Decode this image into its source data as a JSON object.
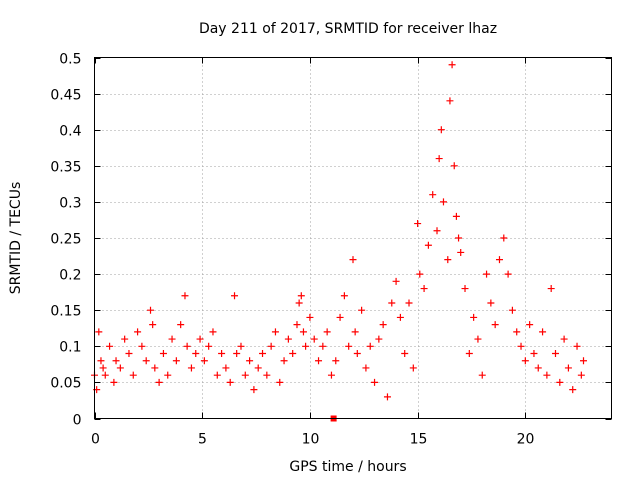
{
  "chart_data": {
    "type": "scatter",
    "title": "Day 211 of 2017, SRMTID for receiver lhaz",
    "xlabel": "GPS time / hours",
    "ylabel": "SRMTID / TECUs",
    "xlim": [
      0,
      24
    ],
    "ylim": [
      0,
      0.5
    ],
    "x_ticks": [
      0,
      5,
      10,
      15,
      20
    ],
    "x_tick_labels": [
      "0",
      "5",
      "10",
      "15",
      "20"
    ],
    "y_ticks": [
      0,
      0.05,
      0.1,
      0.15,
      0.2,
      0.25,
      0.3,
      0.35,
      0.4,
      0.45,
      0.5
    ],
    "y_tick_labels": [
      "0",
      "0.05",
      "0.1",
      "0.15",
      "0.2",
      "0.25",
      "0.3",
      "0.35",
      "0.4",
      "0.45",
      "0.5"
    ],
    "grid": true,
    "marker": "+",
    "color": "#ff0000",
    "series": [
      {
        "name": "SRMTID",
        "x": [
          0.0,
          0.1,
          0.2,
          0.3,
          0.4,
          0.5,
          0.7,
          0.9,
          1.0,
          1.2,
          1.4,
          1.6,
          1.8,
          2.0,
          2.2,
          2.4,
          2.6,
          2.7,
          2.8,
          3.0,
          3.2,
          3.4,
          3.6,
          3.8,
          4.0,
          4.2,
          4.3,
          4.5,
          4.7,
          4.9,
          5.1,
          5.3,
          5.5,
          5.7,
          5.9,
          6.1,
          6.3,
          6.5,
          6.6,
          6.8,
          7.0,
          7.2,
          7.4,
          7.6,
          7.8,
          8.0,
          8.2,
          8.4,
          8.6,
          8.8,
          9.0,
          9.2,
          9.4,
          9.5,
          9.6,
          9.7,
          9.8,
          10.0,
          10.2,
          10.4,
          10.6,
          10.8,
          11.0,
          11.1,
          11.2,
          11.4,
          11.6,
          11.8,
          12.0,
          12.1,
          12.2,
          12.4,
          12.6,
          12.8,
          13.0,
          13.2,
          13.4,
          13.6,
          13.8,
          14.0,
          14.2,
          14.4,
          14.6,
          14.8,
          15.0,
          15.1,
          15.3,
          15.5,
          15.7,
          15.9,
          16.0,
          16.1,
          16.2,
          16.4,
          16.5,
          16.6,
          16.7,
          16.8,
          16.9,
          17.0,
          17.2,
          17.4,
          17.6,
          17.8,
          18.0,
          18.2,
          18.4,
          18.6,
          18.8,
          19.0,
          19.2,
          19.4,
          19.6,
          19.8,
          20.0,
          20.2,
          20.4,
          20.6,
          20.8,
          21.0,
          21.2,
          21.4,
          21.6,
          21.8,
          22.0,
          22.2,
          22.4,
          22.6,
          22.7
        ],
        "y": [
          0.06,
          0.04,
          0.12,
          0.08,
          0.07,
          0.06,
          0.1,
          0.05,
          0.08,
          0.07,
          0.11,
          0.09,
          0.06,
          0.12,
          0.1,
          0.08,
          0.15,
          0.13,
          0.07,
          0.05,
          0.09,
          0.06,
          0.11,
          0.08,
          0.13,
          0.17,
          0.1,
          0.07,
          0.09,
          0.11,
          0.08,
          0.1,
          0.12,
          0.06,
          0.09,
          0.07,
          0.05,
          0.17,
          0.09,
          0.1,
          0.06,
          0.08,
          0.04,
          0.07,
          0.09,
          0.06,
          0.1,
          0.12,
          0.05,
          0.08,
          0.11,
          0.09,
          0.13,
          0.16,
          0.17,
          0.12,
          0.1,
          0.14,
          0.11,
          0.08,
          0.1,
          0.12,
          0.06,
          0.0,
          0.08,
          0.14,
          0.17,
          0.1,
          0.22,
          0.12,
          0.09,
          0.15,
          0.07,
          0.1,
          0.05,
          0.11,
          0.13,
          0.03,
          0.16,
          0.19,
          0.14,
          0.09,
          0.16,
          0.07,
          0.27,
          0.2,
          0.18,
          0.24,
          0.31,
          0.26,
          0.36,
          0.4,
          0.3,
          0.22,
          0.44,
          0.49,
          0.35,
          0.28,
          0.25,
          0.23,
          0.18,
          0.09,
          0.14,
          0.11,
          0.06,
          0.2,
          0.16,
          0.13,
          0.22,
          0.25,
          0.2,
          0.15,
          0.12,
          0.1,
          0.08,
          0.13,
          0.09,
          0.07,
          0.12,
          0.06,
          0.18,
          0.09,
          0.05,
          0.11,
          0.07,
          0.04,
          0.1,
          0.06,
          0.08
        ]
      }
    ]
  }
}
